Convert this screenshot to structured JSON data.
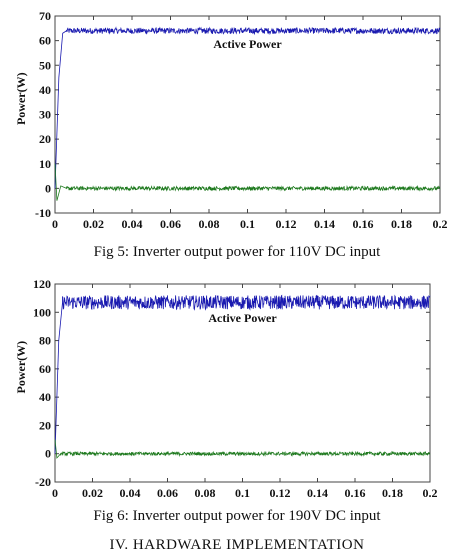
{
  "chart_data": [
    {
      "type": "line",
      "xlabel": "",
      "ylabel": "Power(W)",
      "xlim": [
        0,
        0.2
      ],
      "ylim": [
        -10,
        70
      ],
      "xticks": [
        "0",
        "0.02",
        "0.04",
        "0.06",
        "0.08",
        "0.1",
        "0.12",
        "0.14",
        "0.16",
        "0.18",
        "0.2"
      ],
      "yticks": [
        "-10",
        "0",
        "10",
        "20",
        "30",
        "40",
        "50",
        "60",
        "70"
      ],
      "annotations": [
        "Active Power"
      ],
      "caption": "Fig  5:  Inverter output power for 110V DC input",
      "colors": {
        "active": "#1a1ab0",
        "reactive": "#1f7a1f"
      },
      "series": [
        {
          "color_key": "active",
          "x": [
            0,
            0.002,
            0.004,
            0.006,
            0.2
          ],
          "y": [
            0,
            45,
            63,
            64,
            64
          ],
          "noise": 1.2
        },
        {
          "color_key": "reactive",
          "x": [
            0,
            0.001,
            0.003,
            0.006,
            0.2
          ],
          "y": [
            10,
            -5,
            1,
            0,
            0
          ],
          "noise": 0.8
        }
      ]
    },
    {
      "type": "line",
      "xlabel": "",
      "ylabel": "Power(W)",
      "xlim": [
        0,
        0.2
      ],
      "ylim": [
        -20,
        120
      ],
      "xticks": [
        "0",
        "0.02",
        "0.04",
        "0.06",
        "0.08",
        "0.1",
        "0.12",
        "0.14",
        "0.16",
        "0.18",
        "0.2"
      ],
      "yticks": [
        "-20",
        "0",
        "20",
        "40",
        "60",
        "80",
        "100",
        "120"
      ],
      "annotations": [
        "Active Power"
      ],
      "caption": "Fig  6:  Inverter output power for 190V DC input",
      "colors": {
        "active": "#1a1ab0",
        "reactive": "#1f7a1f"
      },
      "series": [
        {
          "color_key": "active",
          "x": [
            0,
            0.002,
            0.004,
            0.2
          ],
          "y": [
            0,
            80,
            107,
            107
          ],
          "noise": 5
        },
        {
          "color_key": "reactive",
          "x": [
            0,
            0.001,
            0.003,
            0.2
          ],
          "y": [
            10,
            -3,
            0,
            0
          ],
          "noise": 1.2
        }
      ]
    }
  ],
  "section_heading": "IV.    HARDWARE IMPLEMENTATION"
}
